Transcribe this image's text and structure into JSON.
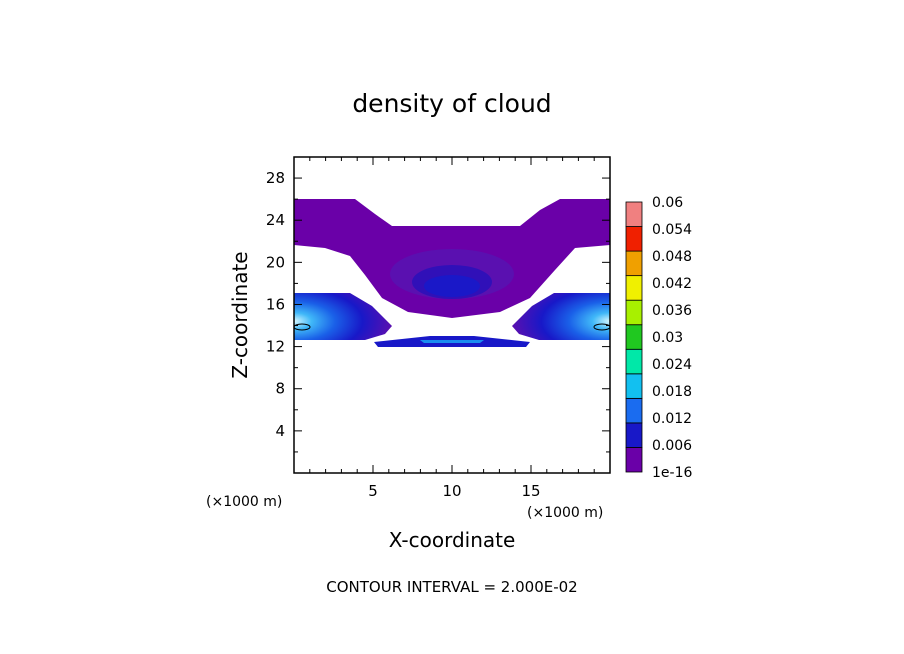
{
  "chart_data": {
    "type": "contour",
    "title": "density of cloud",
    "xlabel": "X-coordinate",
    "ylabel": "Z-coordinate",
    "x_unit_left": "(×1000 m)",
    "x_unit_right": "(×1000 m)",
    "xlim": [
      0,
      20
    ],
    "ylim": [
      0,
      30
    ],
    "x_ticks": [
      5,
      10,
      15
    ],
    "x_tick_labels": [
      "5",
      "10",
      "15"
    ],
    "y_ticks": [
      4,
      8,
      12,
      16,
      20,
      24,
      28
    ],
    "y_tick_labels": [
      "4",
      "8",
      "12",
      "16",
      "20",
      "24",
      "28"
    ],
    "colorbar": {
      "levels": [
        "1e-16",
        "0.006",
        "0.012",
        "0.018",
        "0.024",
        "0.03",
        "0.036",
        "0.042",
        "0.048",
        "0.054",
        "0.06"
      ],
      "colors": [
        "#6a00a8",
        "#1818c8",
        "#1a6cf0",
        "#12c0f0",
        "#00e8a8",
        "#20c820",
        "#a8f000",
        "#f0f000",
        "#f0a000",
        "#f02000",
        "#f08080"
      ]
    },
    "contour_interval": "CONTOUR INTERVAL = 2.000E-02"
  }
}
